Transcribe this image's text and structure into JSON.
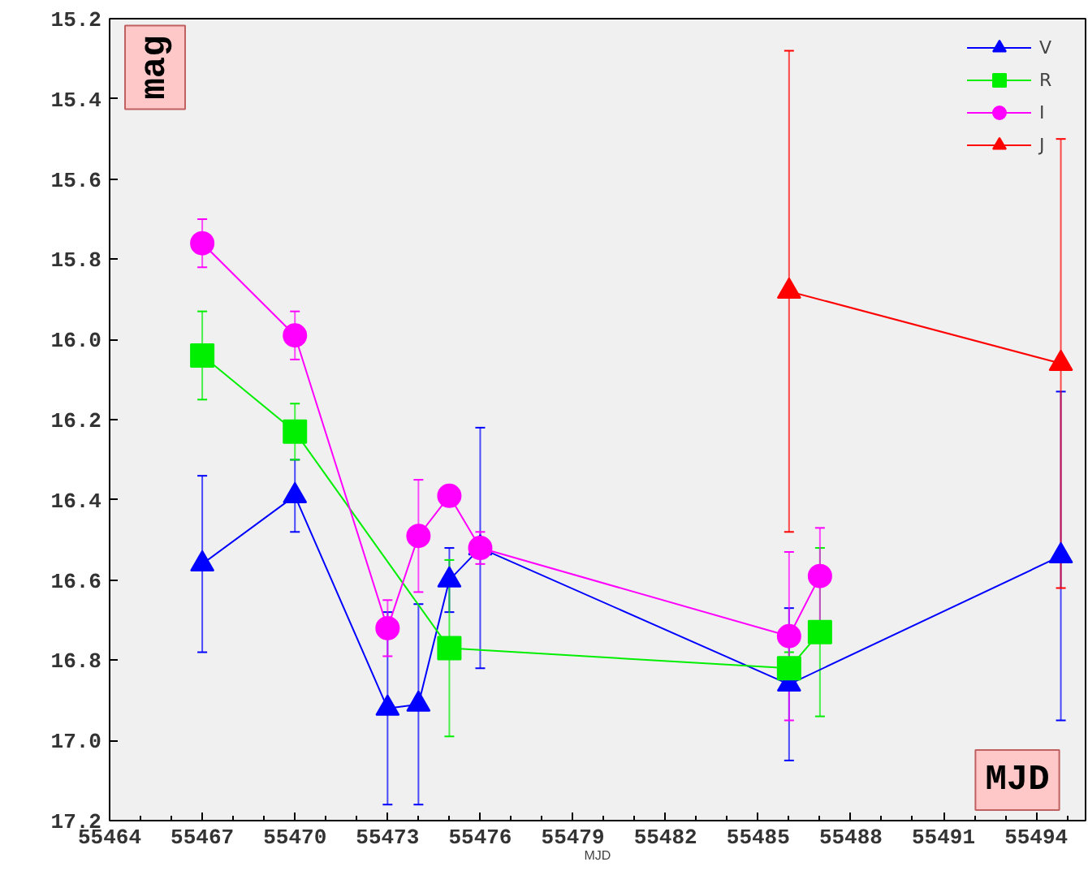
{
  "chart_data": {
    "type": "line",
    "xlabel": "MJD",
    "ylabel": "mag",
    "xlim": [
      55464,
      55495.6
    ],
    "ylim": [
      17.2,
      15.2
    ],
    "xticks": [
      55464,
      55467,
      55470,
      55473,
      55476,
      55479,
      55482,
      55485,
      55488,
      55491,
      55494
    ],
    "yticks": [
      15.2,
      15.4,
      15.6,
      15.8,
      {
        "value": 16.0,
        "label": "16.0"
      },
      16.2,
      16.4,
      16.6,
      16.8,
      {
        "value": 17.0,
        "label": "17.0"
      },
      17.2
    ],
    "grid": false,
    "legend": "top right",
    "annotations": [
      "MJD"
    ],
    "series": [
      {
        "name": "V",
        "color": "#0000ff",
        "marker": "triangle",
        "x": [
          55467,
          55470,
          55473,
          55474,
          55475,
          55476,
          55486,
          55494.8
        ],
        "values": [
          16.56,
          16.39,
          16.92,
          16.91,
          16.6,
          16.52,
          16.86,
          16.54
        ],
        "errors": [
          0.22,
          0.09,
          0.24,
          0.25,
          0.08,
          0.3,
          0.19,
          0.41
        ]
      },
      {
        "name": "R",
        "color": "#00ee00",
        "marker": "square",
        "x": [
          55467,
          55470,
          55475,
          55486,
          55487
        ],
        "values": [
          16.04,
          16.23,
          16.77,
          16.82,
          16.73
        ],
        "errors": [
          0.11,
          0.07,
          0.22,
          0.04,
          0.21
        ]
      },
      {
        "name": "I",
        "color": "#ff00ff",
        "marker": "circle",
        "x": [
          55467,
          55470,
          55473,
          55474,
          55475,
          55476,
          55486,
          55487
        ],
        "values": [
          15.76,
          15.99,
          16.72,
          16.49,
          16.39,
          16.52,
          16.74,
          16.59
        ],
        "errors": [
          0.06,
          0.06,
          0.07,
          0.14,
          null,
          0.04,
          0.21,
          0.12
        ]
      },
      {
        "name": "J",
        "color": "#ff0000",
        "marker": "triangle",
        "x": [
          55486,
          55494.8
        ],
        "values": [
          15.88,
          16.06
        ],
        "errors": [
          0.6,
          0.56
        ]
      }
    ]
  }
}
